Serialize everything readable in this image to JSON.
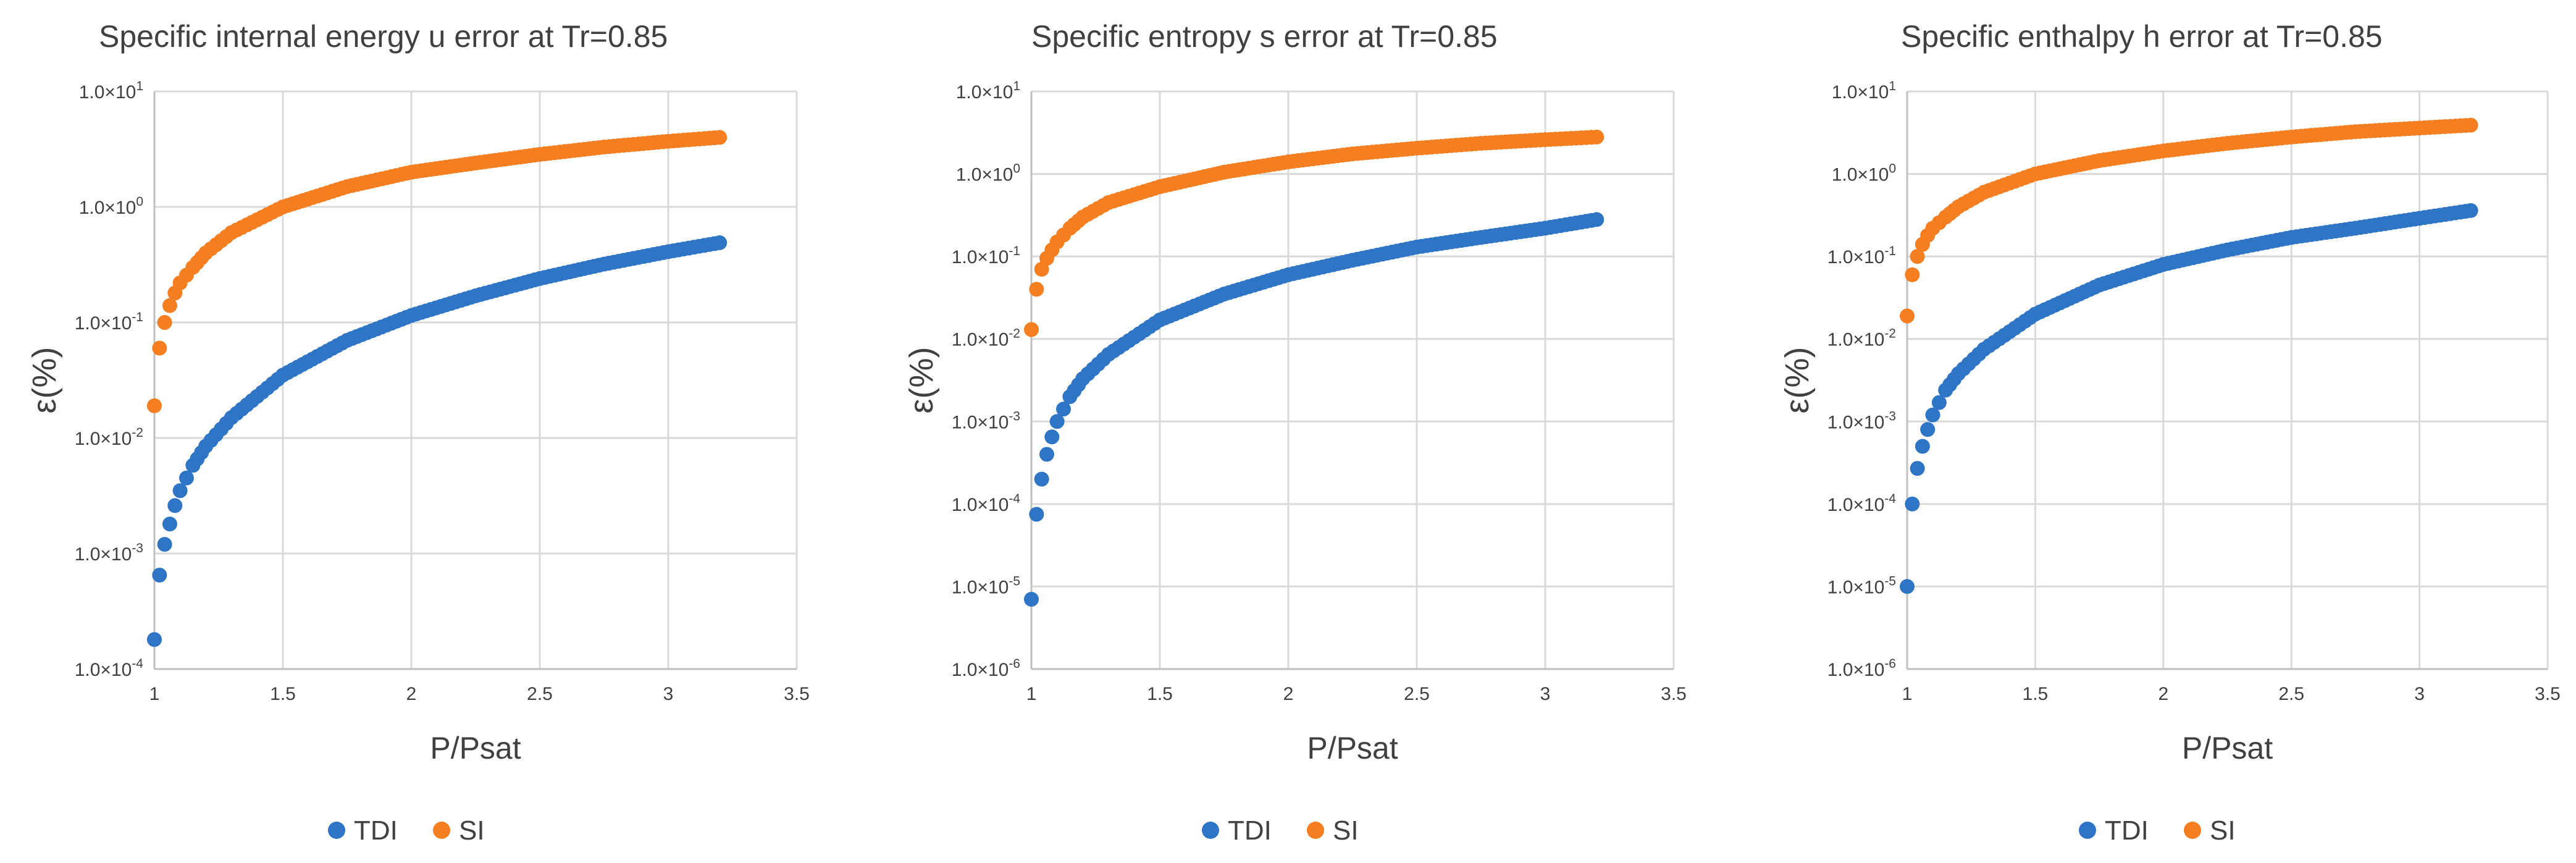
{
  "colors": {
    "tdi": "#2E75C6",
    "si": "#F47E20",
    "grid": "#D9D9D9",
    "text": "#404040",
    "axis": "#BFBFBF"
  },
  "chart_data": [
    {
      "type": "scatter",
      "title": "Specific internal energy u error at Tr=0.85",
      "xlabel": "P/Psat",
      "ylabel": "ε(%)",
      "yscale": "log",
      "xlim": [
        1,
        3.5
      ],
      "ylim": [
        0.0001,
        10
      ],
      "xticks": [
        "1",
        "1.5",
        "2",
        "2.5",
        "3",
        "3.5"
      ],
      "yticks": [
        {
          "mant": "1.0×10",
          "exp": "-4"
        },
        {
          "mant": "1.0×10",
          "exp": "-3"
        },
        {
          "mant": "1.0×10",
          "exp": "-2"
        },
        {
          "mant": "1.0×10",
          "exp": "-1"
        },
        {
          "mant": "1.0×10",
          "exp": "0"
        },
        {
          "mant": "1.0×10",
          "exp": "1"
        }
      ],
      "series": [
        {
          "name": "TDI",
          "x": [
            1.0,
            1.02,
            1.04,
            1.06,
            1.08,
            1.1,
            1.15,
            1.2,
            1.3,
            1.5,
            1.75,
            2.0,
            2.25,
            2.5,
            2.75,
            3.0,
            3.2
          ],
          "y": [
            0.00018,
            0.00065,
            0.0012,
            0.0018,
            0.0026,
            0.0035,
            0.0058,
            0.0085,
            0.015,
            0.035,
            0.07,
            0.115,
            0.17,
            0.24,
            0.32,
            0.41,
            0.49
          ]
        },
        {
          "name": "SI",
          "x": [
            1.0,
            1.02,
            1.04,
            1.06,
            1.08,
            1.1,
            1.15,
            1.2,
            1.3,
            1.5,
            1.75,
            2.0,
            2.25,
            2.5,
            2.75,
            3.0,
            3.2
          ],
          "y": [
            0.019,
            0.06,
            0.1,
            0.14,
            0.18,
            0.22,
            0.3,
            0.4,
            0.6,
            1.0,
            1.5,
            2.0,
            2.4,
            2.85,
            3.3,
            3.7,
            4.0
          ]
        }
      ]
    },
    {
      "type": "scatter",
      "title": "Specific entropy s error at Tr=0.85",
      "xlabel": "P/Psat",
      "ylabel": "ε(%)",
      "yscale": "log",
      "xlim": [
        1,
        3.5
      ],
      "ylim": [
        1e-06,
        10
      ],
      "xticks": [
        "1",
        "1.5",
        "2",
        "2.5",
        "3",
        "3.5"
      ],
      "yticks": [
        {
          "mant": "1.0×10",
          "exp": "-6"
        },
        {
          "mant": "1.0×10",
          "exp": "-5"
        },
        {
          "mant": "1.0×10",
          "exp": "-4"
        },
        {
          "mant": "1.0×10",
          "exp": "-3"
        },
        {
          "mant": "1.0×10",
          "exp": "-2"
        },
        {
          "mant": "1.0×10",
          "exp": "-1"
        },
        {
          "mant": "1.0×10",
          "exp": "0"
        },
        {
          "mant": "1.0×10",
          "exp": "1"
        }
      ],
      "series": [
        {
          "name": "TDI",
          "x": [
            1.0,
            1.02,
            1.04,
            1.06,
            1.08,
            1.1,
            1.15,
            1.2,
            1.3,
            1.5,
            1.75,
            2.0,
            2.25,
            2.5,
            2.75,
            3.0,
            3.2
          ],
          "y": [
            7e-06,
            7.5e-05,
            0.0002,
            0.0004,
            0.00065,
            0.001,
            0.002,
            0.0033,
            0.0065,
            0.017,
            0.035,
            0.06,
            0.09,
            0.13,
            0.17,
            0.22,
            0.28
          ]
        },
        {
          "name": "SI",
          "x": [
            1.0,
            1.02,
            1.04,
            1.06,
            1.08,
            1.1,
            1.15,
            1.2,
            1.3,
            1.5,
            1.75,
            2.0,
            2.25,
            2.5,
            2.75,
            3.0,
            3.2
          ],
          "y": [
            0.013,
            0.04,
            0.07,
            0.095,
            0.12,
            0.15,
            0.22,
            0.3,
            0.45,
            0.7,
            1.05,
            1.4,
            1.75,
            2.05,
            2.35,
            2.6,
            2.8
          ]
        }
      ]
    },
    {
      "type": "scatter",
      "title": "Specific enthalpy h error at Tr=0.85",
      "xlabel": "P/Psat",
      "ylabel": "ε(%)",
      "yscale": "log",
      "xlim": [
        1,
        3.5
      ],
      "ylim": [
        1e-06,
        10
      ],
      "xticks": [
        "1",
        "1.5",
        "2",
        "2.5",
        "3",
        "3.5"
      ],
      "yticks": [
        {
          "mant": "1.0×10",
          "exp": "-6"
        },
        {
          "mant": "1.0×10",
          "exp": "-5"
        },
        {
          "mant": "1.0×10",
          "exp": "-4"
        },
        {
          "mant": "1.0×10",
          "exp": "-3"
        },
        {
          "mant": "1.0×10",
          "exp": "-2"
        },
        {
          "mant": "1.0×10",
          "exp": "-1"
        },
        {
          "mant": "1.0×10",
          "exp": "0"
        },
        {
          "mant": "1.0×10",
          "exp": "1"
        }
      ],
      "series": [
        {
          "name": "TDI",
          "x": [
            1.0,
            1.02,
            1.04,
            1.06,
            1.08,
            1.1,
            1.15,
            1.2,
            1.3,
            1.5,
            1.75,
            2.0,
            2.25,
            2.5,
            2.75,
            3.0,
            3.2
          ],
          "y": [
            1e-05,
            0.0001,
            0.00027,
            0.0005,
            0.0008,
            0.0012,
            0.0024,
            0.0038,
            0.0075,
            0.02,
            0.045,
            0.08,
            0.12,
            0.17,
            0.22,
            0.29,
            0.36
          ]
        },
        {
          "name": "SI",
          "x": [
            1.0,
            1.02,
            1.04,
            1.06,
            1.08,
            1.1,
            1.15,
            1.2,
            1.3,
            1.5,
            1.75,
            2.0,
            2.25,
            2.5,
            2.75,
            3.0,
            3.2
          ],
          "y": [
            0.019,
            0.06,
            0.1,
            0.14,
            0.18,
            0.22,
            0.3,
            0.4,
            0.6,
            1.0,
            1.45,
            1.9,
            2.35,
            2.8,
            3.25,
            3.6,
            3.9
          ]
        }
      ]
    }
  ]
}
